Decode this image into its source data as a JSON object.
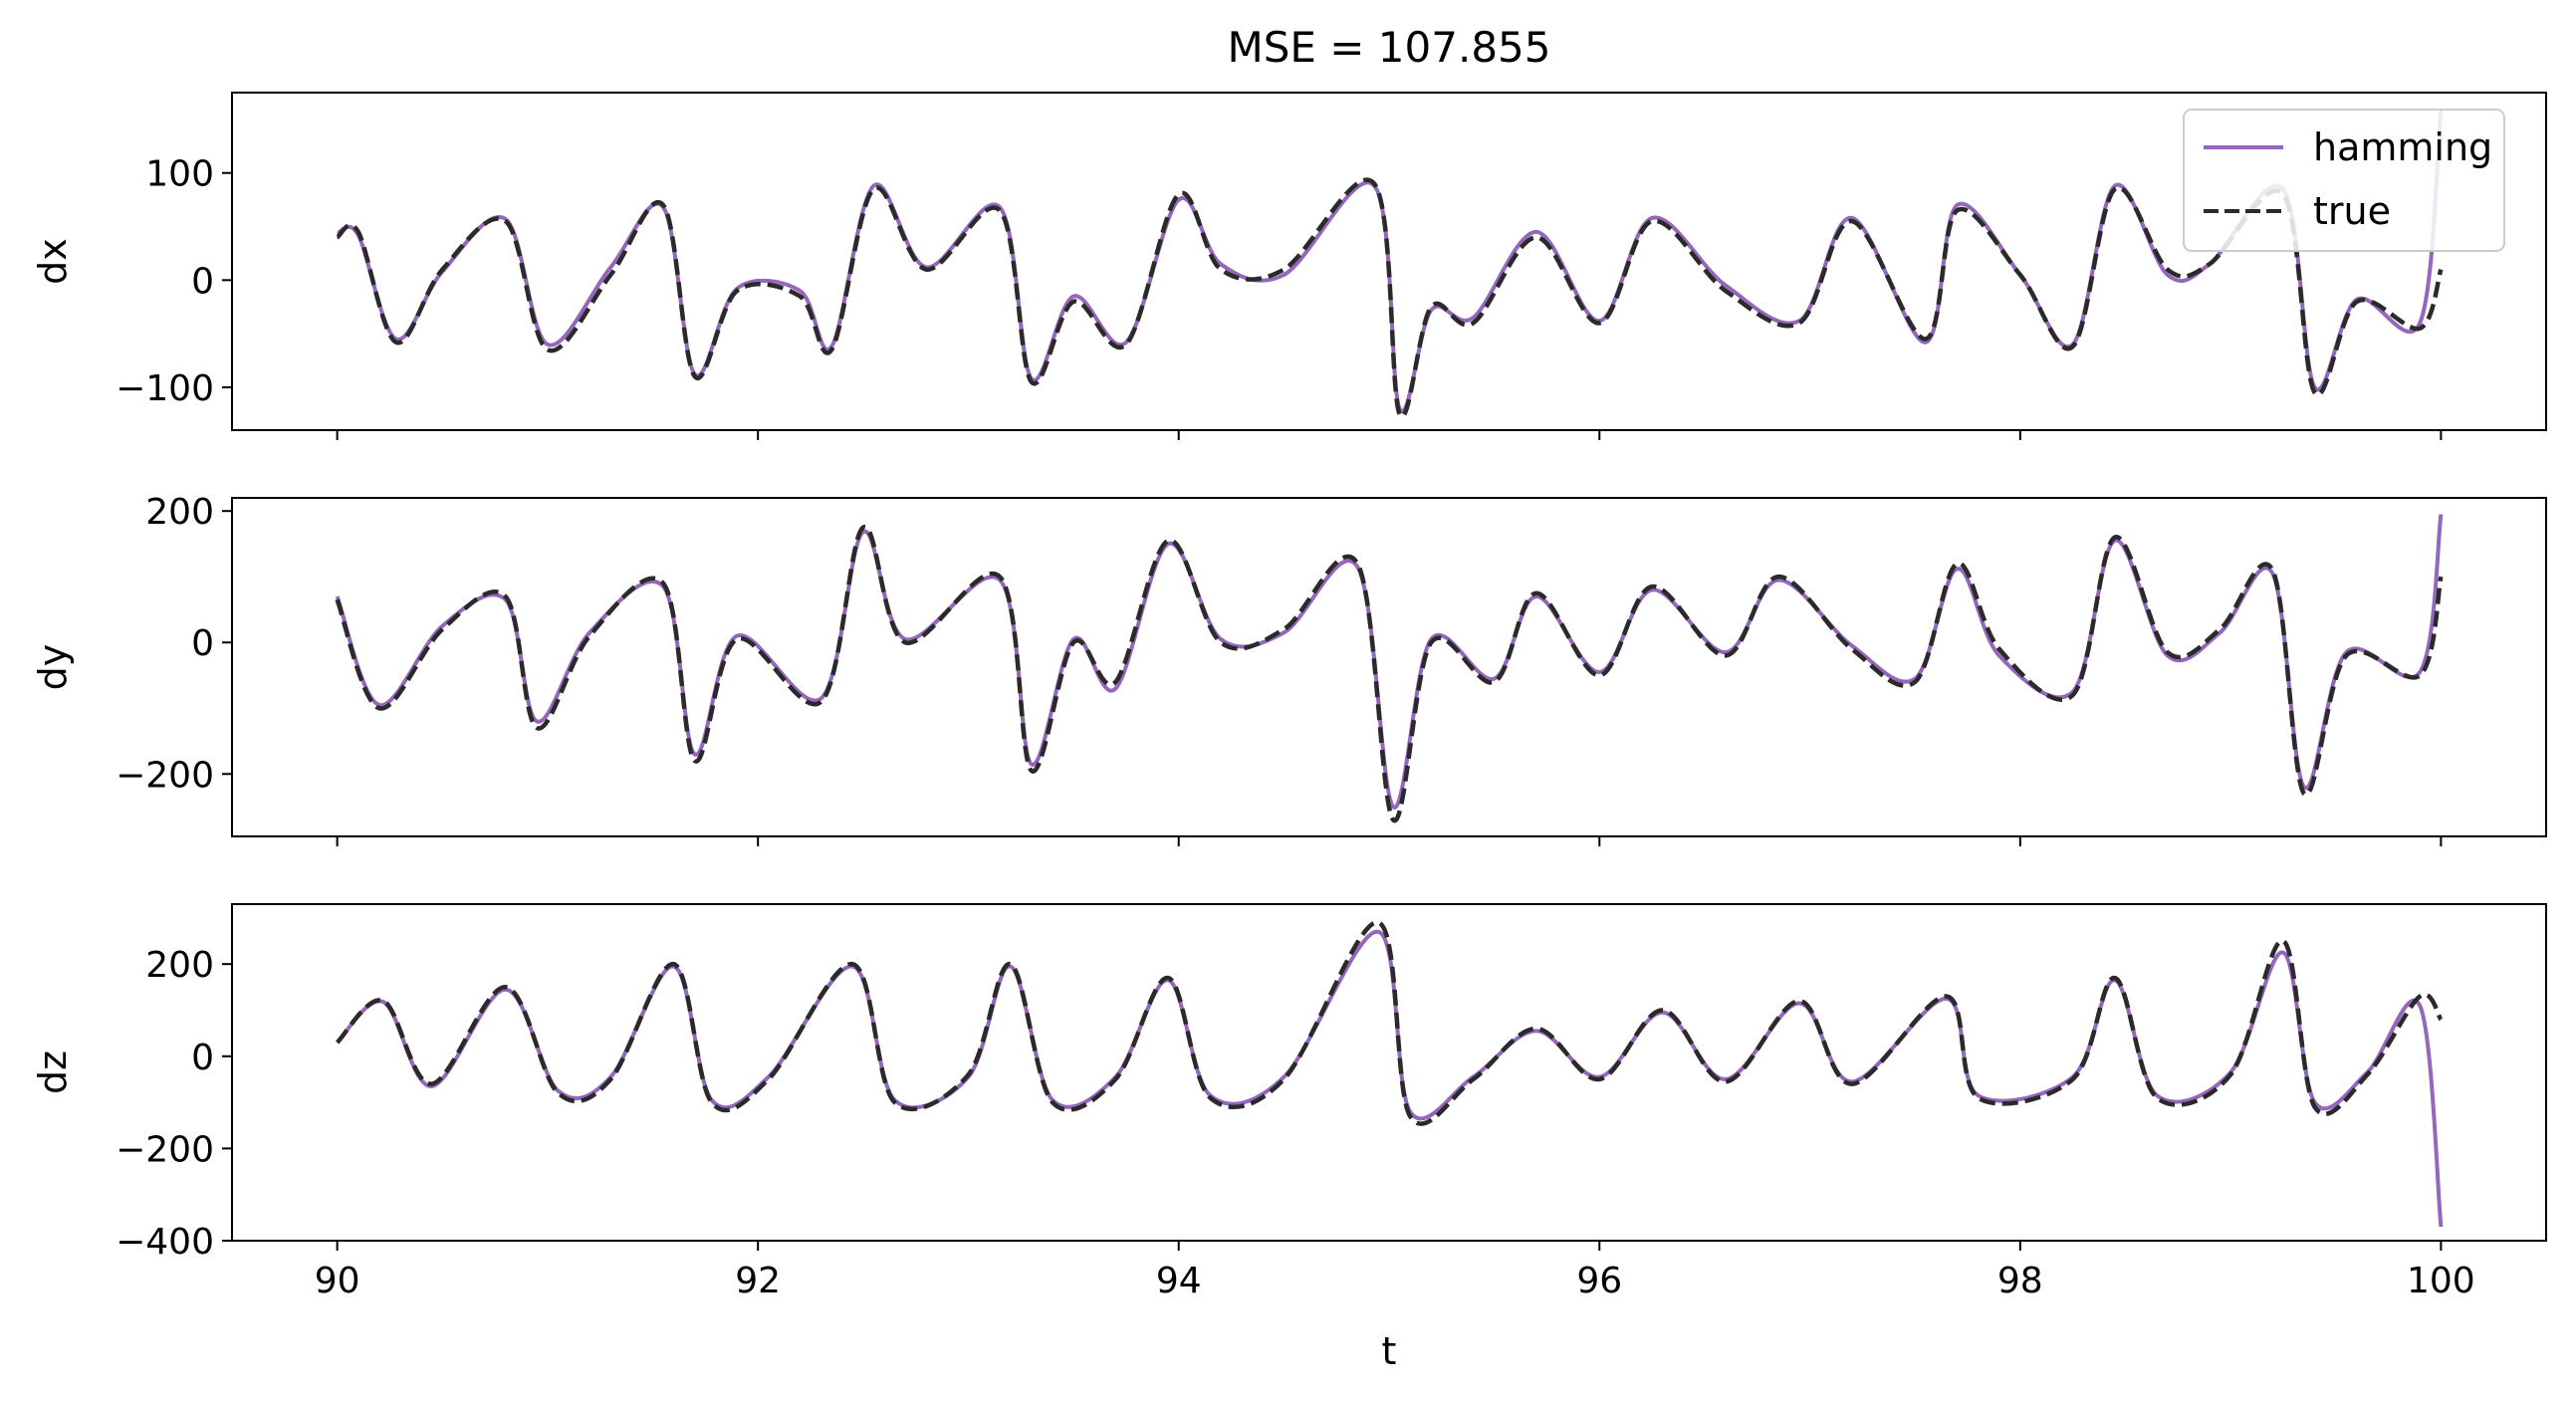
{
  "chart_data": {
    "type": "line",
    "title": "MSE = 107.855",
    "xlabel": "t",
    "xlim": [
      89.5,
      100.5
    ],
    "x_ticks": [
      "90",
      "92",
      "94",
      "96",
      "98",
      "100"
    ],
    "legend": {
      "placement": "top-right",
      "entries": [
        {
          "name": "hamming",
          "color": "#9467bd",
          "style": "solid"
        },
        {
          "name": "true",
          "color": "#2a2a2a",
          "style": "dashed"
        }
      ]
    },
    "panels": [
      {
        "ylabel": "dx",
        "ylim": [
          -140,
          175
        ],
        "y_ticks": [
          "−100",
          "0",
          "100"
        ],
        "y_tick_values": [
          -100,
          0,
          100
        ],
        "series": [
          {
            "name": "true",
            "x": [
              90.0,
              90.1,
              90.28,
              90.5,
              90.8,
              91.0,
              91.3,
              91.55,
              91.7,
              91.9,
              92.2,
              92.35,
              92.55,
              92.8,
              93.15,
              93.3,
              93.5,
              93.75,
              94.0,
              94.2,
              94.5,
              94.93,
              95.05,
              95.2,
              95.4,
              95.7,
              96.0,
              96.25,
              96.6,
              96.95,
              97.2,
              97.55,
              97.7,
              98.0,
              98.25,
              98.45,
              98.7,
              98.9,
              99.25,
              99.4,
              99.6,
              99.9,
              100.0
            ],
            "y": [
              40,
              45,
              -58,
              10,
              55,
              -65,
              5,
              70,
              -90,
              -10,
              -15,
              -65,
              85,
              10,
              65,
              -95,
              -20,
              -60,
              80,
              10,
              10,
              90,
              -125,
              -25,
              -40,
              40,
              -40,
              55,
              -10,
              -40,
              55,
              -55,
              65,
              5,
              -62,
              85,
              10,
              15,
              80,
              -105,
              -20,
              -45,
              10
            ]
          },
          {
            "name": "hamming",
            "x": [
              90.0,
              90.1,
              90.28,
              90.5,
              90.8,
              91.0,
              91.3,
              91.55,
              91.7,
              91.9,
              92.2,
              92.35,
              92.55,
              92.8,
              93.15,
              93.3,
              93.5,
              93.75,
              94.0,
              94.2,
              94.5,
              94.93,
              95.05,
              95.2,
              95.4,
              95.7,
              96.0,
              96.25,
              96.6,
              96.95,
              97.2,
              97.55,
              97.7,
              98.0,
              98.25,
              98.45,
              98.7,
              98.9,
              99.25,
              99.4,
              99.6,
              99.9,
              100.0
            ],
            "y": [
              44,
              42,
              -55,
              8,
              57,
              -60,
              12,
              68,
              -88,
              -8,
              -10,
              -62,
              88,
              12,
              68,
              -92,
              -15,
              -58,
              75,
              15,
              5,
              88,
              -120,
              -28,
              -35,
              45,
              -38,
              58,
              -5,
              -38,
              58,
              -58,
              70,
              5,
              -60,
              88,
              5,
              15,
              85,
              -100,
              -18,
              -40,
              160
            ]
          }
        ]
      },
      {
        "ylabel": "dy",
        "ylim": [
          -295,
          220
        ],
        "y_ticks": [
          "−200",
          "0",
          "200"
        ],
        "y_tick_values": [
          -200,
          0,
          200
        ],
        "series": [
          {
            "name": "true",
            "x": [
              90.0,
              90.2,
              90.5,
              90.8,
              90.95,
              91.2,
              91.55,
              91.7,
              91.9,
              92.3,
              92.5,
              92.7,
              93.15,
              93.3,
              93.5,
              93.7,
              93.95,
              94.2,
              94.5,
              94.85,
              95.02,
              95.2,
              95.5,
              95.7,
              96.0,
              96.25,
              96.6,
              96.85,
              97.2,
              97.5,
              97.7,
              97.9,
              98.25,
              98.45,
              98.7,
              98.95,
              99.2,
              99.35,
              99.55,
              99.9,
              100.0
            ],
            "y": [
              65,
              -100,
              20,
              70,
              -130,
              10,
              90,
              -180,
              5,
              -90,
              175,
              0,
              100,
              -195,
              0,
              -60,
              155,
              0,
              20,
              120,
              -270,
              0,
              -60,
              75,
              -50,
              85,
              -20,
              100,
              -10,
              -60,
              120,
              -10,
              -80,
              160,
              -15,
              20,
              110,
              -230,
              -20,
              -50,
              100
            ]
          },
          {
            "name": "hamming",
            "x": [
              90.0,
              90.2,
              90.5,
              90.8,
              90.95,
              91.2,
              91.55,
              91.7,
              91.9,
              92.3,
              92.5,
              92.7,
              93.15,
              93.3,
              93.5,
              93.7,
              93.95,
              94.2,
              94.5,
              94.85,
              95.02,
              95.2,
              95.5,
              95.7,
              96.0,
              96.25,
              96.6,
              96.85,
              97.2,
              97.5,
              97.7,
              97.9,
              98.25,
              98.45,
              98.7,
              98.95,
              99.2,
              99.35,
              99.55,
              99.9,
              100.0
            ],
            "y": [
              70,
              -95,
              25,
              65,
              -120,
              15,
              85,
              -170,
              10,
              -85,
              168,
              5,
              95,
              -185,
              5,
              -70,
              150,
              5,
              15,
              115,
              -250,
              5,
              -55,
              70,
              -45,
              80,
              -15,
              95,
              -5,
              -55,
              112,
              -20,
              -75,
              155,
              -20,
              15,
              105,
              -220,
              -15,
              -45,
              195
            ]
          }
        ]
      },
      {
        "ylabel": "dz",
        "ylim": [
          -400,
          330
        ],
        "y_ticks": [
          "−400",
          "−200",
          "0",
          "200"
        ],
        "y_tick_values": [
          -400,
          -200,
          0,
          200
        ],
        "series": [
          {
            "name": "true",
            "x": [
              90.0,
              90.22,
              90.45,
              90.8,
              91.05,
              91.3,
              91.6,
              91.78,
              92.05,
              92.45,
              92.65,
              93.0,
              93.2,
              93.4,
              93.7,
              93.95,
              94.15,
              94.5,
              94.95,
              95.1,
              95.4,
              95.7,
              96.0,
              96.3,
              96.6,
              96.95,
              97.2,
              97.65,
              97.8,
              98.25,
              98.45,
              98.65,
              99.0,
              99.25,
              99.4,
              99.65,
              99.9,
              100.0
            ],
            "y": [
              30,
              120,
              -60,
              150,
              -80,
              -50,
              200,
              -100,
              -50,
              200,
              -100,
              -40,
              200,
              -100,
              -50,
              170,
              -90,
              -50,
              290,
              -130,
              -50,
              60,
              -50,
              100,
              -55,
              120,
              -60,
              130,
              -90,
              -50,
              170,
              -90,
              -40,
              250,
              -110,
              -40,
              130,
              80
            ]
          },
          {
            "name": "hamming",
            "x": [
              90.0,
              90.22,
              90.45,
              90.8,
              91.05,
              91.3,
              91.6,
              91.78,
              92.05,
              92.45,
              92.65,
              93.0,
              93.2,
              93.4,
              93.7,
              93.95,
              94.15,
              94.5,
              94.95,
              95.1,
              95.4,
              95.7,
              96.0,
              96.3,
              96.6,
              96.95,
              97.2,
              97.65,
              97.8,
              98.25,
              98.45,
              98.65,
              99.0,
              99.25,
              99.4,
              99.65,
              99.9,
              100.0
            ],
            "y": [
              30,
              118,
              -65,
              145,
              -75,
              -45,
              195,
              -95,
              -45,
              195,
              -95,
              -45,
              195,
              -95,
              -45,
              165,
              -85,
              -45,
              270,
              -120,
              -45,
              55,
              -45,
              95,
              -50,
              115,
              -55,
              125,
              -85,
              -45,
              165,
              -85,
              -35,
              225,
              -100,
              -35,
              110,
              -370
            ]
          }
        ]
      }
    ]
  }
}
